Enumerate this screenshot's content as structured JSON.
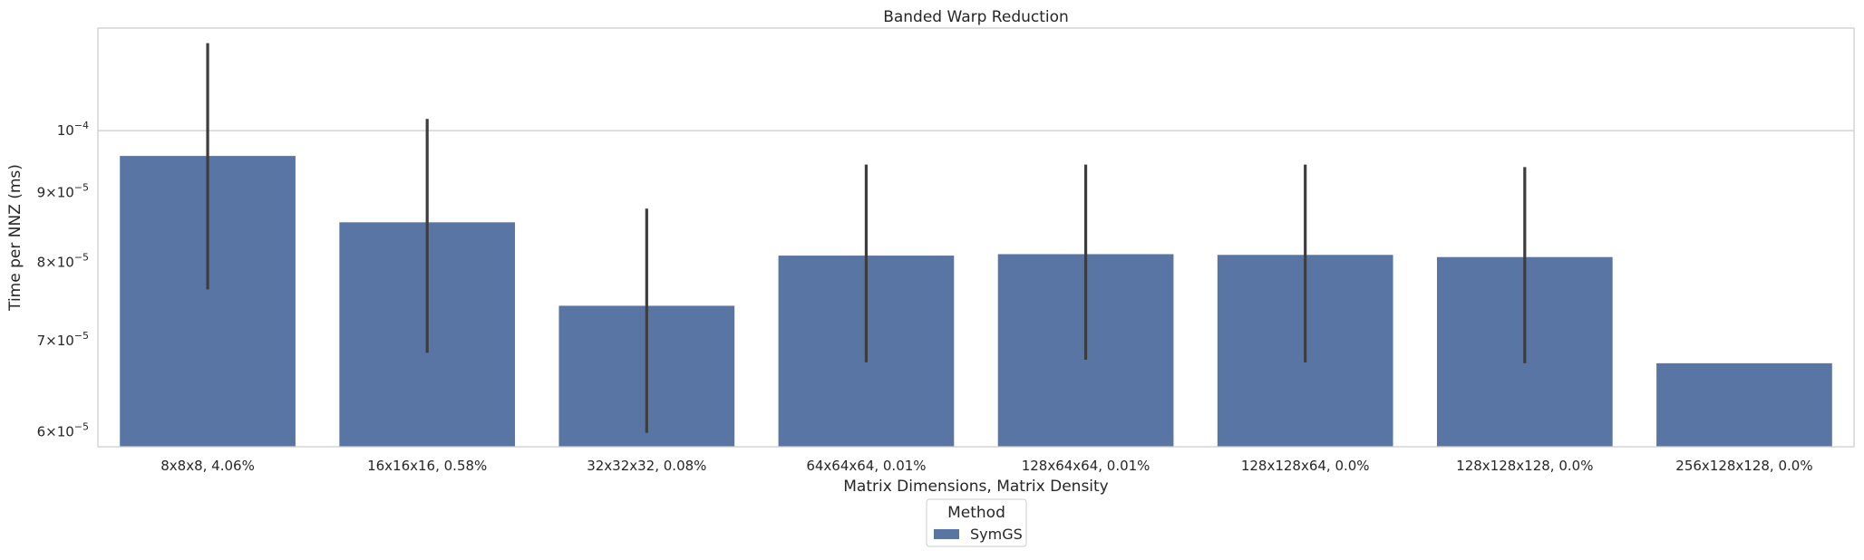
{
  "chart_data": {
    "type": "bar",
    "title": "Banded Warp Reduction",
    "xlabel": "Matrix Dimensions, Matrix Density",
    "ylabel": "Time per NNZ (ms)",
    "yscale": "log",
    "ylim": [
      5.85e-05,
      0.000119
    ],
    "grid": "horizontal",
    "categories": [
      "8x8x8, 4.06%",
      "16x16x16, 0.58%",
      "32x32x32, 0.08%",
      "64x64x64, 0.01%",
      "128x64x64, 0.01%",
      "128x128x64, 0.0%",
      "128x128x128, 0.0%",
      "256x128x128, 0.0%"
    ],
    "yticks": [
      {
        "value": 6e-05,
        "base": "6",
        "exp": "−5"
      },
      {
        "value": 7e-05,
        "base": "7",
        "exp": "−5"
      },
      {
        "value": 8e-05,
        "base": "8",
        "exp": "−5"
      },
      {
        "value": 9e-05,
        "base": "9",
        "exp": "−5"
      },
      {
        "value": 0.0001,
        "base": "",
        "exp": "−4"
      }
    ],
    "series": [
      {
        "name": "SymGS",
        "color": "#5975a4",
        "values": [
          9.58e-05,
          8.56e-05,
          7.43e-05,
          8.09e-05,
          8.11e-05,
          8.1e-05,
          8.07e-05,
          6.74e-05
        ],
        "error_low": [
          7.64e-05,
          6.86e-05,
          5.99e-05,
          6.75e-05,
          6.78e-05,
          6.75e-05,
          6.74e-05,
          null
        ],
        "error_high": [
          0.000116,
          0.000102,
          8.76e-05,
          9.44e-05,
          9.44e-05,
          9.44e-05,
          9.4e-05,
          null
        ]
      }
    ],
    "legend": {
      "title": "Method",
      "position": "bottom-center"
    }
  }
}
